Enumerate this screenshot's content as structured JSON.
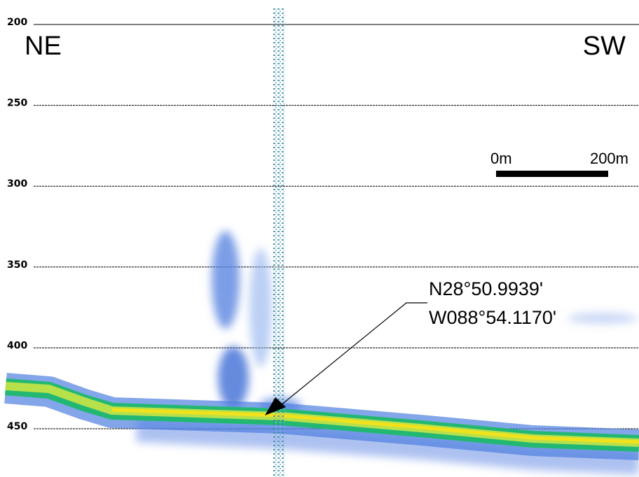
{
  "depth_axis": {
    "ticks": [
      200,
      250,
      300,
      350,
      400,
      450
    ]
  },
  "directions": {
    "left": "NE",
    "right": "SW"
  },
  "scale_bar": {
    "start": "0m",
    "end": "200m"
  },
  "annotation": {
    "lines": [
      "N28°50.9939'",
      "W088°54.1170'"
    ]
  }
}
